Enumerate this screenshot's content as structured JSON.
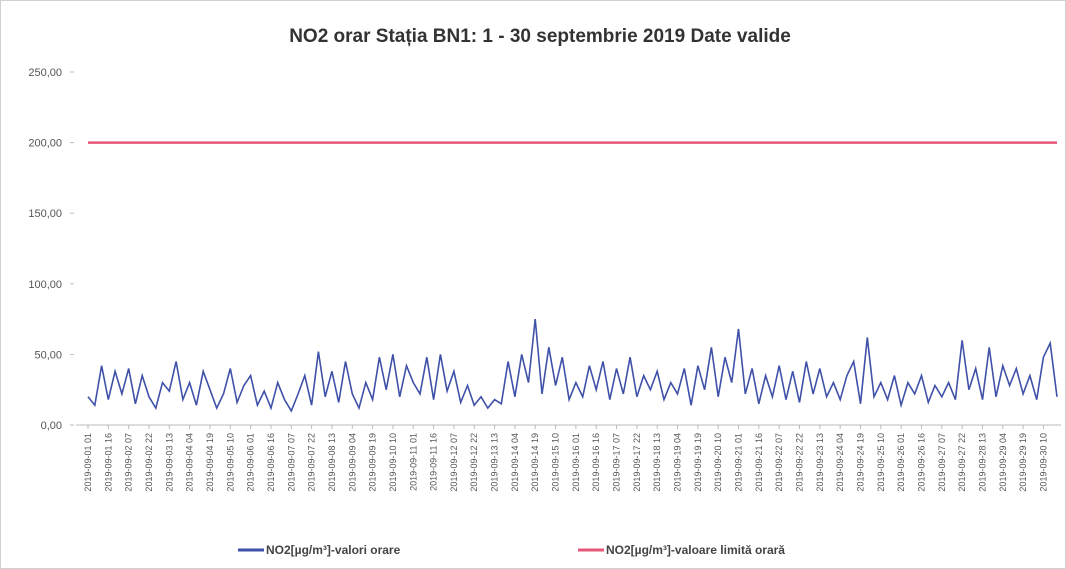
{
  "chart_data": {
    "type": "line",
    "title": "NO2 orar Stația BN1: 1 - 30 septembrie 2019 Date valide",
    "categories": [
      "2019-09-01 01",
      null,
      null,
      "2019-09-01 16",
      null,
      null,
      "2019-09-02 07",
      null,
      null,
      "2019-09-02 22",
      null,
      null,
      "2019-09-03 13",
      null,
      null,
      "2019-09-04 04",
      null,
      null,
      "2019-09-04 19",
      null,
      null,
      "2019-09-05 10",
      null,
      null,
      "2019-09-06 01",
      null,
      null,
      "2019-09-06 16",
      null,
      null,
      "2019-09-07 07",
      null,
      null,
      "2019-09-07 22",
      null,
      null,
      "2019-09-08 13",
      null,
      null,
      "2019-09-09 04",
      null,
      null,
      "2019-09-09 19",
      null,
      null,
      "2019-09-10 10",
      null,
      null,
      "2019-09-11 01",
      null,
      null,
      "2019-09-11 16",
      null,
      null,
      "2019-09-12 07",
      null,
      null,
      "2019-09-12 22",
      null,
      null,
      "2019-09-13 13",
      null,
      null,
      "2019-09-14 04",
      null,
      null,
      "2019-09-14 19",
      null,
      null,
      "2019-09-15 10",
      null,
      null,
      "2019-09-16 01",
      null,
      null,
      "2019-09-16 16",
      null,
      null,
      "2019-09-17 07",
      null,
      null,
      "2019-09-17 22",
      null,
      null,
      "2019-09-18 13",
      null,
      null,
      "2019-09-19 04",
      null,
      null,
      "2019-09-19 19",
      null,
      null,
      "2019-09-20 10",
      null,
      null,
      "2019-09-21 01",
      null,
      null,
      "2019-09-21 16",
      null,
      null,
      "2019-09-22 07",
      null,
      null,
      "2019-09-22 22",
      null,
      null,
      "2019-09-23 13",
      null,
      null,
      "2019-09-24 04",
      null,
      null,
      "2019-09-24 19",
      null,
      null,
      "2019-09-25 10",
      null,
      null,
      "2019-09-26 01",
      null,
      null,
      "2019-09-26 16",
      null,
      null,
      "2019-09-27 07",
      null,
      null,
      "2019-09-27 22",
      null,
      null,
      "2019-09-28 13",
      null,
      null,
      "2019-09-29 04",
      null,
      null,
      "2019-09-29 19",
      null,
      null,
      "2019-09-30 10",
      null,
      null
    ],
    "series": [
      {
        "name": "NO2[µg/m³]-valori orare",
        "color": "#3f51a8",
        "values": [
          20,
          14,
          42,
          18,
          38,
          22,
          40,
          15,
          35,
          20,
          12,
          30,
          24,
          45,
          18,
          30,
          14,
          38,
          25,
          12,
          22,
          40,
          16,
          28,
          35,
          14,
          24,
          12,
          30,
          18,
          10,
          22,
          35,
          14,
          52,
          20,
          38,
          16,
          45,
          22,
          12,
          30,
          18,
          48,
          25,
          50,
          20,
          42,
          30,
          22,
          48,
          18,
          50,
          24,
          38,
          16,
          28,
          14,
          20,
          12,
          18,
          15,
          45,
          20,
          50,
          30,
          75,
          22,
          55,
          28,
          48,
          18,
          30,
          20,
          42,
          25,
          45,
          18,
          40,
          22,
          48,
          20,
          35,
          25,
          38,
          18,
          30,
          22,
          40,
          14,
          42,
          25,
          55,
          20,
          48,
          30,
          68,
          22,
          40,
          15,
          35,
          20,
          42,
          18,
          38,
          16,
          45,
          22,
          40,
          20,
          30,
          18,
          35,
          45,
          15,
          62,
          20,
          30,
          18,
          35,
          14,
          30,
          22,
          35,
          16,
          28,
          20,
          30,
          18,
          60,
          25,
          40,
          18,
          55,
          20,
          42,
          28,
          40,
          22,
          35,
          18,
          48,
          58,
          20
        ]
      },
      {
        "name": "NO2[µg/m³]-valoare limită orară",
        "color": "#e8577a",
        "values": [
          200,
          200,
          200,
          200,
          200,
          200,
          200,
          200,
          200,
          200,
          200,
          200,
          200,
          200,
          200,
          200,
          200,
          200,
          200,
          200,
          200,
          200,
          200,
          200,
          200,
          200,
          200,
          200,
          200,
          200,
          200,
          200,
          200,
          200,
          200,
          200,
          200,
          200,
          200,
          200,
          200,
          200,
          200,
          200,
          200,
          200,
          200,
          200,
          200,
          200,
          200,
          200,
          200,
          200,
          200,
          200,
          200,
          200,
          200,
          200,
          200,
          200,
          200,
          200,
          200,
          200,
          200,
          200,
          200,
          200,
          200,
          200,
          200,
          200,
          200,
          200,
          200,
          200,
          200,
          200,
          200,
          200,
          200,
          200,
          200,
          200,
          200,
          200,
          200,
          200,
          200,
          200,
          200,
          200,
          200,
          200,
          200,
          200,
          200,
          200,
          200,
          200,
          200,
          200,
          200,
          200,
          200,
          200,
          200,
          200,
          200,
          200,
          200,
          200,
          200,
          200,
          200,
          200,
          200,
          200,
          200,
          200,
          200,
          200,
          200,
          200,
          200,
          200,
          200,
          200,
          200,
          200,
          200,
          200,
          200,
          200,
          200,
          200,
          200,
          200,
          200,
          200,
          200,
          200
        ]
      }
    ],
    "ylim": [
      0,
      250
    ],
    "yticks": [
      {
        "value": 0,
        "label": "0,00"
      },
      {
        "value": 50,
        "label": "50,00"
      },
      {
        "value": 100,
        "label": "100,00"
      },
      {
        "value": 150,
        "label": "150,00"
      },
      {
        "value": 200,
        "label": "200,00"
      },
      {
        "value": 250,
        "label": "250,00"
      }
    ],
    "legend": "bottom"
  }
}
